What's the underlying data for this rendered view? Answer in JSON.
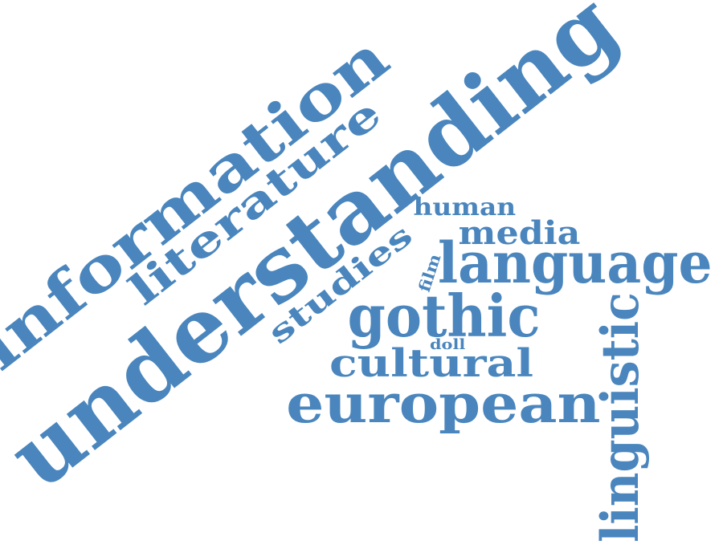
{
  "cloud": {
    "color": "#4a86bd",
    "words": {
      "understanding": "understanding",
      "information": "information",
      "literature": "literature",
      "language": "language",
      "gothic": "gothic",
      "european": "european",
      "cultural": "cultural",
      "linguistic": "linguistic",
      "studies": "studies",
      "media": "media",
      "human": "human",
      "film": "film",
      "doll": "doll"
    }
  }
}
